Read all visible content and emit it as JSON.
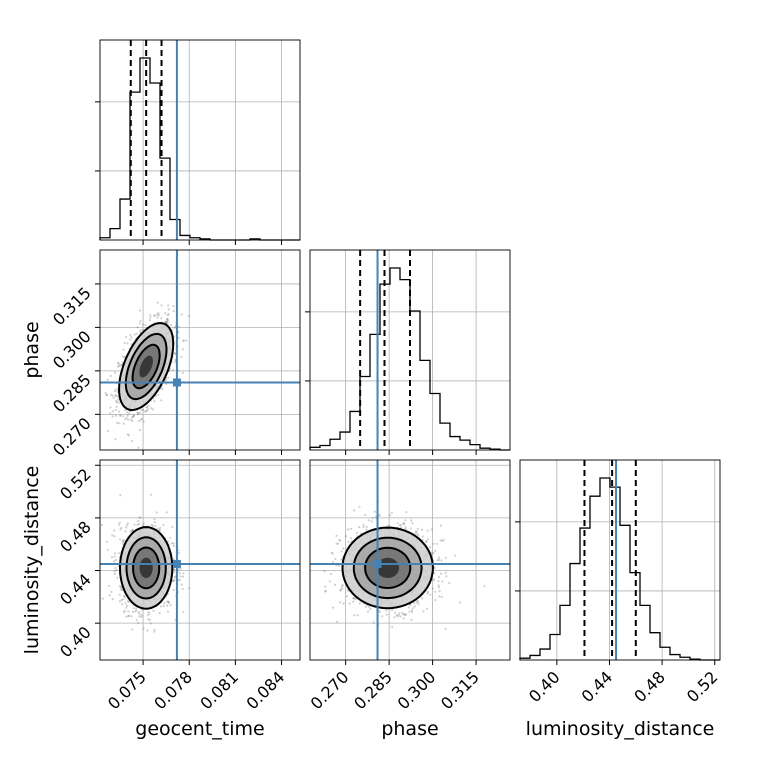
{
  "chart_data": {
    "type": "corner",
    "parameters": [
      "geocent_time",
      "phase",
      "luminosity_distance"
    ],
    "axis_labels": {
      "geocent_time": "geocent_time",
      "phase": "phase",
      "luminosity_distance": "luminosity_distance"
    },
    "truths": {
      "geocent_time": 0.0772,
      "phase": 0.281,
      "luminosity_distance": 0.445
    },
    "truth_color": "#4682b4",
    "quantiles": {
      "geocent_time": [
        0.0742,
        0.0752,
        0.0762
      ],
      "phase": [
        0.275,
        0.2834,
        0.2922
      ],
      "luminosity_distance": [
        0.421,
        0.442,
        0.46
      ]
    },
    "ranges": {
      "geocent_time": [
        0.0722,
        0.0852
      ],
      "phase": [
        0.2577,
        0.3267
      ],
      "luminosity_distance": [
        0.372,
        0.524
      ]
    },
    "ticks": {
      "geocent_time": [
        "0.075",
        "0.078",
        "0.081",
        "0.084"
      ],
      "phase": [
        "0.270",
        "0.285",
        "0.300",
        "0.315"
      ],
      "luminosity_distance": [
        "0.40",
        "0.44",
        "0.48",
        "0.52"
      ]
    },
    "histograms": {
      "geocent_time": {
        "bin_edges_start": 0.0722,
        "bin_width": 0.00065,
        "counts": [
          2,
          10,
          36,
          130,
          160,
          138,
          72,
          18,
          4,
          2,
          1,
          0,
          0,
          0,
          0,
          1,
          0,
          0,
          0,
          0
        ]
      },
      "phase": {
        "bin_edges_start": 0.2577,
        "bin_width": 0.00345,
        "counts": [
          3,
          5,
          12,
          20,
          43,
          82,
          129,
          185,
          203,
          190,
          155,
          100,
          63,
          30,
          15,
          11,
          6,
          2,
          1,
          0
        ]
      },
      "luminosity_distance": {
        "bin_edges_start": 0.372,
        "bin_width": 0.0076,
        "counts": [
          2,
          5,
          12,
          28,
          60,
          106,
          145,
          180,
          200,
          190,
          148,
          96,
          60,
          30,
          14,
          6,
          3,
          1,
          0,
          0
        ]
      }
    },
    "pairs": [
      {
        "x": "geocent_time",
        "y": "phase",
        "mean": [
          0.0752,
          0.2865
        ],
        "sd": [
          0.00088,
          0.0075
        ],
        "rho": 0.52
      },
      {
        "x": "geocent_time",
        "y": "luminosity_distance",
        "mean": [
          0.0752,
          0.442
        ],
        "sd": [
          0.00085,
          0.0155
        ],
        "rho": 0.0
      },
      {
        "x": "phase",
        "y": "luminosity_distance",
        "mean": [
          0.2845,
          0.442
        ],
        "sd": [
          0.0078,
          0.0153
        ],
        "rho": 0.0
      }
    ],
    "contour_levels": [
      0.5,
      1.0,
      1.5,
      2.0
    ],
    "grid": true
  }
}
